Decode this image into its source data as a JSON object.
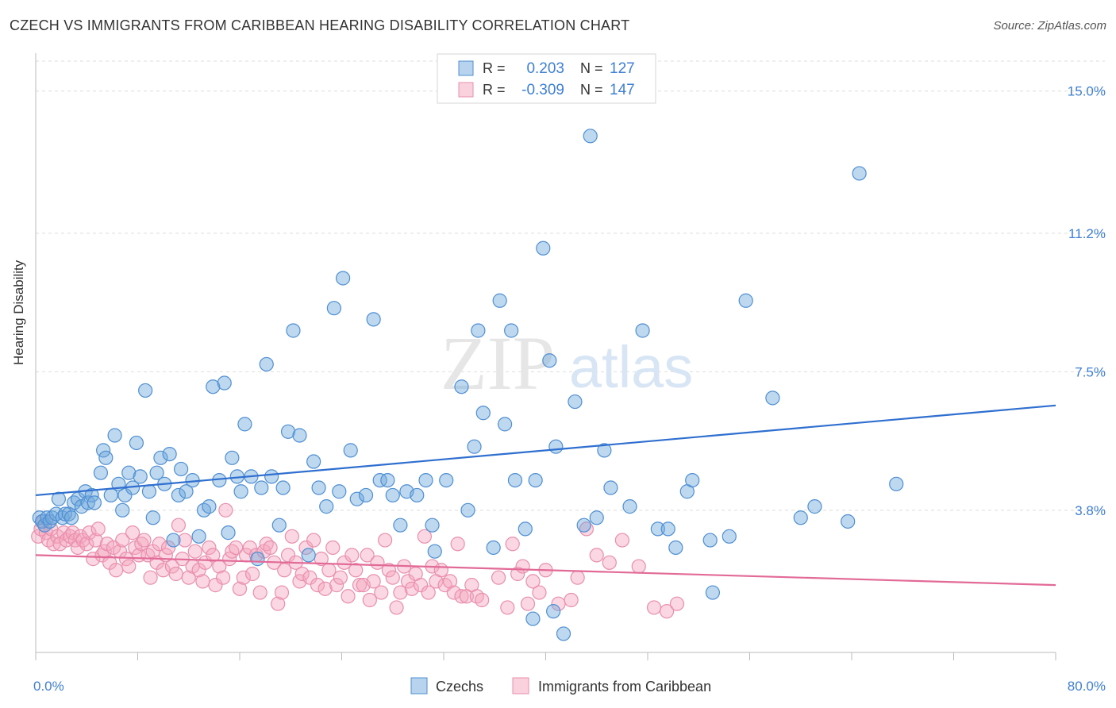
{
  "header": {
    "title": "CZECH VS IMMIGRANTS FROM CARIBBEAN HEARING DISABILITY CORRELATION CHART",
    "source": "Source: ZipAtlas.com"
  },
  "watermark": {
    "zip": "ZIP",
    "atlas": "atlas"
  },
  "colors": {
    "blue": "#6fa8dc",
    "blue_line": "#2f6fcf",
    "pink": "#f4a6be",
    "pink_line": "#e26a96",
    "tick_text": "#3f7fd6",
    "grid": "#dddddd"
  },
  "chart_data": {
    "type": "scatter",
    "title": "CZECH VS IMMIGRANTS FROM CARIBBEAN HEARING DISABILITY CORRELATION CHART",
    "ylabel": "Hearing Disability",
    "xlim": [
      0,
      80
    ],
    "ylim": [
      0,
      15.8
    ],
    "x_tick_labels": [
      {
        "value": 0,
        "label": "0.0%"
      },
      {
        "value": 80,
        "label": "80.0%"
      }
    ],
    "y_tick_labels": [
      {
        "value": 3.8,
        "label": "3.8%"
      },
      {
        "value": 7.5,
        "label": "7.5%"
      },
      {
        "value": 11.2,
        "label": "11.2%"
      },
      {
        "value": 15.0,
        "label": "15.0%"
      }
    ],
    "legend_top": [
      {
        "series": "Czechs",
        "r_label": "R =",
        "r_value": "0.203",
        "n_label": "N =",
        "n_value": "127"
      },
      {
        "series": "Immigrants from Caribbean",
        "r_label": "R =",
        "r_value": "-0.309",
        "n_label": "N =",
        "n_value": "147"
      }
    ],
    "legend_bottom": [
      "Czechs",
      "Immigrants from Caribbean"
    ],
    "series": [
      {
        "name": "Czechs",
        "trend": {
          "x": [
            0,
            80
          ],
          "y": [
            4.2,
            6.6
          ]
        },
        "points": [
          [
            0.3,
            3.6
          ],
          [
            0.5,
            3.5
          ],
          [
            0.7,
            3.4
          ],
          [
            0.9,
            3.6
          ],
          [
            1.1,
            3.5
          ],
          [
            1.3,
            3.6
          ],
          [
            1.6,
            3.7
          ],
          [
            1.8,
            4.1
          ],
          [
            2.1,
            3.6
          ],
          [
            2.3,
            3.7
          ],
          [
            2.6,
            3.7
          ],
          [
            2.8,
            3.6
          ],
          [
            3.0,
            4.0
          ],
          [
            3.3,
            4.1
          ],
          [
            3.6,
            3.9
          ],
          [
            3.9,
            4.3
          ],
          [
            4.1,
            4.0
          ],
          [
            4.4,
            4.2
          ],
          [
            4.6,
            4.0
          ],
          [
            5.1,
            4.8
          ],
          [
            5.3,
            5.4
          ],
          [
            5.5,
            5.2
          ],
          [
            5.9,
            4.2
          ],
          [
            6.2,
            5.8
          ],
          [
            6.5,
            4.5
          ],
          [
            6.8,
            3.8
          ],
          [
            7.0,
            4.2
          ],
          [
            7.3,
            4.8
          ],
          [
            7.6,
            4.4
          ],
          [
            7.9,
            5.6
          ],
          [
            8.2,
            4.7
          ],
          [
            8.6,
            7.0
          ],
          [
            8.9,
            4.3
          ],
          [
            9.2,
            3.6
          ],
          [
            9.5,
            4.8
          ],
          [
            9.8,
            5.2
          ],
          [
            10.1,
            4.5
          ],
          [
            10.5,
            5.3
          ],
          [
            10.8,
            3.0
          ],
          [
            11.2,
            4.2
          ],
          [
            11.4,
            4.9
          ],
          [
            11.8,
            4.3
          ],
          [
            12.3,
            4.6
          ],
          [
            12.8,
            3.1
          ],
          [
            13.2,
            3.8
          ],
          [
            13.6,
            3.9
          ],
          [
            13.9,
            7.1
          ],
          [
            14.4,
            4.6
          ],
          [
            14.8,
            7.2
          ],
          [
            15.1,
            3.2
          ],
          [
            15.4,
            5.2
          ],
          [
            15.8,
            4.7
          ],
          [
            16.1,
            4.3
          ],
          [
            16.4,
            6.1
          ],
          [
            16.9,
            4.7
          ],
          [
            17.4,
            2.5
          ],
          [
            17.7,
            4.4
          ],
          [
            18.1,
            7.7
          ],
          [
            18.5,
            4.7
          ],
          [
            19.1,
            3.4
          ],
          [
            19.4,
            4.4
          ],
          [
            19.8,
            5.9
          ],
          [
            20.2,
            8.6
          ],
          [
            20.7,
            5.8
          ],
          [
            21.4,
            2.6
          ],
          [
            21.8,
            5.1
          ],
          [
            22.2,
            4.4
          ],
          [
            22.8,
            3.9
          ],
          [
            23.4,
            9.2
          ],
          [
            23.8,
            4.3
          ],
          [
            24.1,
            10.0
          ],
          [
            24.7,
            5.4
          ],
          [
            25.2,
            4.1
          ],
          [
            25.9,
            4.2
          ],
          [
            26.5,
            8.9
          ],
          [
            27.0,
            4.6
          ],
          [
            27.6,
            4.6
          ],
          [
            28.0,
            4.2
          ],
          [
            28.6,
            3.4
          ],
          [
            29.1,
            4.3
          ],
          [
            29.9,
            4.2
          ],
          [
            30.6,
            4.6
          ],
          [
            31.1,
            3.4
          ],
          [
            31.3,
            2.7
          ],
          [
            32.2,
            4.6
          ],
          [
            33.4,
            7.1
          ],
          [
            33.9,
            3.8
          ],
          [
            34.4,
            5.5
          ],
          [
            34.7,
            8.6
          ],
          [
            35.1,
            6.4
          ],
          [
            35.9,
            2.8
          ],
          [
            36.4,
            9.4
          ],
          [
            36.8,
            6.1
          ],
          [
            37.3,
            8.6
          ],
          [
            37.6,
            4.6
          ],
          [
            38.4,
            3.3
          ],
          [
            39.0,
            0.9
          ],
          [
            39.2,
            4.6
          ],
          [
            39.8,
            10.8
          ],
          [
            40.3,
            7.8
          ],
          [
            40.6,
            1.1
          ],
          [
            40.8,
            5.5
          ],
          [
            41.4,
            0.5
          ],
          [
            42.3,
            6.7
          ],
          [
            43.0,
            3.4
          ],
          [
            43.5,
            13.8
          ],
          [
            44.0,
            3.6
          ],
          [
            44.6,
            5.4
          ],
          [
            45.1,
            4.4
          ],
          [
            46.6,
            3.9
          ],
          [
            47.6,
            8.6
          ],
          [
            48.8,
            3.3
          ],
          [
            49.6,
            3.3
          ],
          [
            50.2,
            2.8
          ],
          [
            51.1,
            4.3
          ],
          [
            51.5,
            4.6
          ],
          [
            52.9,
            3.0
          ],
          [
            53.1,
            1.6
          ],
          [
            54.4,
            3.1
          ],
          [
            55.7,
            9.4
          ],
          [
            57.8,
            6.8
          ],
          [
            60.0,
            3.6
          ],
          [
            61.1,
            3.9
          ],
          [
            63.7,
            3.5
          ],
          [
            64.6,
            12.8
          ],
          [
            67.5,
            4.5
          ]
        ]
      },
      {
        "name": "Immigrants from Caribbean",
        "trend": {
          "x": [
            0,
            80
          ],
          "y": [
            2.6,
            1.8
          ]
        },
        "points": [
          [
            0.2,
            3.1
          ],
          [
            0.4,
            3.3
          ],
          [
            0.6,
            3.5
          ],
          [
            0.8,
            3.2
          ],
          [
            1.0,
            3.0
          ],
          [
            1.2,
            3.3
          ],
          [
            1.4,
            2.9
          ],
          [
            1.7,
            3.1
          ],
          [
            1.9,
            2.9
          ],
          [
            2.2,
            3.2
          ],
          [
            2.4,
            3.0
          ],
          [
            2.7,
            3.1
          ],
          [
            2.9,
            3.2
          ],
          [
            3.1,
            3.0
          ],
          [
            3.3,
            2.8
          ],
          [
            3.5,
            3.1
          ],
          [
            3.7,
            3.0
          ],
          [
            4.0,
            2.9
          ],
          [
            4.2,
            3.2
          ],
          [
            4.5,
            2.5
          ],
          [
            4.7,
            3.0
          ],
          [
            4.9,
            3.3
          ],
          [
            5.2,
            2.6
          ],
          [
            5.4,
            2.7
          ],
          [
            5.6,
            2.9
          ],
          [
            5.8,
            2.4
          ],
          [
            6.1,
            2.8
          ],
          [
            6.3,
            2.2
          ],
          [
            6.6,
            2.7
          ],
          [
            6.8,
            3.0
          ],
          [
            7.1,
            2.5
          ],
          [
            7.3,
            2.3
          ],
          [
            7.6,
            3.2
          ],
          [
            7.8,
            2.8
          ],
          [
            8.1,
            2.6
          ],
          [
            8.3,
            2.9
          ],
          [
            8.5,
            3.0
          ],
          [
            8.8,
            2.6
          ],
          [
            9.0,
            2.0
          ],
          [
            9.2,
            2.7
          ],
          [
            9.5,
            2.4
          ],
          [
            9.7,
            2.9
          ],
          [
            10.0,
            2.2
          ],
          [
            10.2,
            2.6
          ],
          [
            10.4,
            2.8
          ],
          [
            10.7,
            2.3
          ],
          [
            11.0,
            2.1
          ],
          [
            11.2,
            3.4
          ],
          [
            11.5,
            2.5
          ],
          [
            11.7,
            3.0
          ],
          [
            12.0,
            2.0
          ],
          [
            12.3,
            2.3
          ],
          [
            12.5,
            2.7
          ],
          [
            12.8,
            2.2
          ],
          [
            13.1,
            1.9
          ],
          [
            13.3,
            2.4
          ],
          [
            13.6,
            2.8
          ],
          [
            13.9,
            2.6
          ],
          [
            14.1,
            1.8
          ],
          [
            14.4,
            2.3
          ],
          [
            14.7,
            2.0
          ],
          [
            14.9,
            3.8
          ],
          [
            15.2,
            2.5
          ],
          [
            15.4,
            2.7
          ],
          [
            15.7,
            2.8
          ],
          [
            16.0,
            1.7
          ],
          [
            16.3,
            2.0
          ],
          [
            16.5,
            2.6
          ],
          [
            16.8,
            2.8
          ],
          [
            17.0,
            2.1
          ],
          [
            17.3,
            2.6
          ],
          [
            17.6,
            1.6
          ],
          [
            17.9,
            2.7
          ],
          [
            18.1,
            2.9
          ],
          [
            18.4,
            2.8
          ],
          [
            18.7,
            2.4
          ],
          [
            19.0,
            1.3
          ],
          [
            19.3,
            1.6
          ],
          [
            19.5,
            2.2
          ],
          [
            19.8,
            2.6
          ],
          [
            20.1,
            3.1
          ],
          [
            20.4,
            2.4
          ],
          [
            20.7,
            1.9
          ],
          [
            20.9,
            2.1
          ],
          [
            21.2,
            2.8
          ],
          [
            21.5,
            2.0
          ],
          [
            21.8,
            3.0
          ],
          [
            22.1,
            1.8
          ],
          [
            22.4,
            2.5
          ],
          [
            22.7,
            1.7
          ],
          [
            23.0,
            2.2
          ],
          [
            23.3,
            2.8
          ],
          [
            23.6,
            1.8
          ],
          [
            23.9,
            2.0
          ],
          [
            24.2,
            2.4
          ],
          [
            24.5,
            1.5
          ],
          [
            24.8,
            2.6
          ],
          [
            25.1,
            2.2
          ],
          [
            25.4,
            1.8
          ],
          [
            25.7,
            1.8
          ],
          [
            26.0,
            2.6
          ],
          [
            26.2,
            1.4
          ],
          [
            26.5,
            1.9
          ],
          [
            26.8,
            2.4
          ],
          [
            27.1,
            1.6
          ],
          [
            27.4,
            3.0
          ],
          [
            27.7,
            2.2
          ],
          [
            28.0,
            2.0
          ],
          [
            28.3,
            1.2
          ],
          [
            28.6,
            1.6
          ],
          [
            28.9,
            2.3
          ],
          [
            29.2,
            1.9
          ],
          [
            29.5,
            1.7
          ],
          [
            29.8,
            2.1
          ],
          [
            30.2,
            1.8
          ],
          [
            30.5,
            3.1
          ],
          [
            30.8,
            1.6
          ],
          [
            31.1,
            2.3
          ],
          [
            31.4,
            1.9
          ],
          [
            31.8,
            2.2
          ],
          [
            32.1,
            1.8
          ],
          [
            32.5,
            1.9
          ],
          [
            32.8,
            1.6
          ],
          [
            33.1,
            2.9
          ],
          [
            33.4,
            1.5
          ],
          [
            33.8,
            1.5
          ],
          [
            34.2,
            1.8
          ],
          [
            34.6,
            1.5
          ],
          [
            35.0,
            1.4
          ],
          [
            36.3,
            2.0
          ],
          [
            37.0,
            1.2
          ],
          [
            37.4,
            2.9
          ],
          [
            37.8,
            2.1
          ],
          [
            38.2,
            2.3
          ],
          [
            38.6,
            1.3
          ],
          [
            39.0,
            1.9
          ],
          [
            39.5,
            1.6
          ],
          [
            40.0,
            2.2
          ],
          [
            41.0,
            1.3
          ],
          [
            42.0,
            1.4
          ],
          [
            42.5,
            2.0
          ],
          [
            43.2,
            3.3
          ],
          [
            44.0,
            2.6
          ],
          [
            45.0,
            2.4
          ],
          [
            46.0,
            3.0
          ],
          [
            47.3,
            2.3
          ],
          [
            48.5,
            1.2
          ],
          [
            49.5,
            1.1
          ],
          [
            50.3,
            1.3
          ]
        ]
      }
    ]
  }
}
